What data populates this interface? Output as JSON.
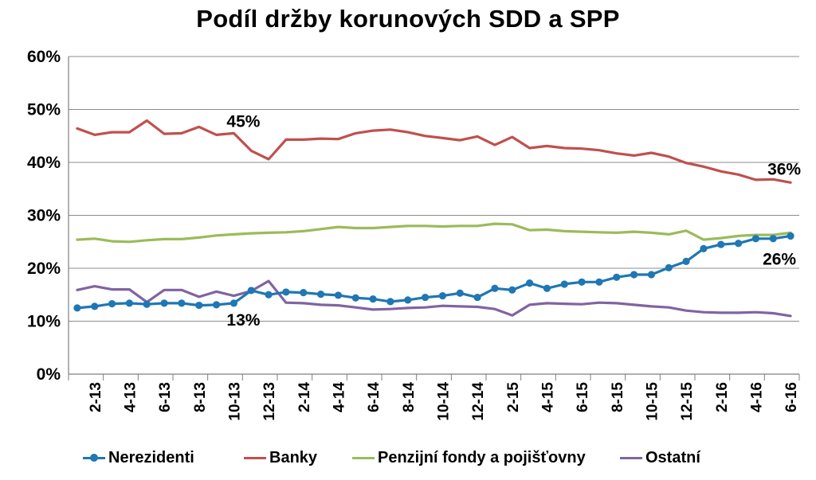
{
  "chart_data": {
    "type": "line",
    "title": "Podíl držby korunových SDD a SPP",
    "ylim": [
      0,
      60
    ],
    "yticks": [
      "0%",
      "10%",
      "20%",
      "30%",
      "40%",
      "50%",
      "60%"
    ],
    "categories": [
      "1-13",
      "2-13",
      "3-13",
      "4-13",
      "5-13",
      "6-13",
      "7-13",
      "8-13",
      "9-13",
      "10-13",
      "11-13",
      "12-13",
      "1-14",
      "2-14",
      "3-14",
      "4-14",
      "5-14",
      "6-14",
      "7-14",
      "8-14",
      "9-14",
      "10-14",
      "11-14",
      "12-14",
      "1-15",
      "2-15",
      "3-15",
      "4-15",
      "5-15",
      "6-15",
      "7-15",
      "8-15",
      "9-15",
      "10-15",
      "11-15",
      "12-15",
      "1-16",
      "2-16",
      "3-16",
      "4-16",
      "5-16",
      "6-16"
    ],
    "xtick_labels": [
      "2-13",
      "4-13",
      "6-13",
      "8-13",
      "10-13",
      "12-13",
      "2-14",
      "4-14",
      "6-14",
      "8-14",
      "10-14",
      "12-14",
      "2-15",
      "4-15",
      "6-15",
      "8-15",
      "10-15",
      "12-15",
      "2-16",
      "4-16",
      "6-16"
    ],
    "grid": "horizontal",
    "legend_position": "bottom",
    "series": [
      {
        "name": "Nerezidenti",
        "color": "#1f77b4",
        "markers": true,
        "values": [
          12.5,
          12.8,
          13.3,
          13.4,
          13.2,
          13.4,
          13.4,
          13.0,
          13.1,
          13.4,
          15.8,
          15.0,
          15.5,
          15.4,
          15.1,
          14.9,
          14.4,
          14.2,
          13.7,
          14.0,
          14.5,
          14.8,
          15.3,
          14.5,
          16.2,
          15.9,
          17.2,
          16.2,
          17.0,
          17.4,
          17.4,
          18.3,
          18.8,
          18.8,
          20.1,
          21.3,
          23.7,
          24.5,
          24.7,
          25.6,
          25.6,
          26.1
        ]
      },
      {
        "name": "Banky",
        "color": "#c0504d",
        "markers": false,
        "values": [
          46.4,
          45.2,
          45.7,
          45.7,
          47.9,
          45.4,
          45.5,
          46.7,
          45.2,
          45.5,
          42.2,
          40.6,
          44.3,
          44.3,
          44.5,
          44.4,
          45.5,
          46.0,
          46.2,
          45.7,
          45.0,
          44.6,
          44.2,
          44.9,
          43.3,
          44.8,
          42.7,
          43.1,
          42.7,
          42.6,
          42.3,
          41.7,
          41.3,
          41.8,
          41.1,
          39.9,
          39.2,
          38.3,
          37.7,
          36.7,
          36.8,
          36.2
        ]
      },
      {
        "name": "Penzijní fondy a pojišťovny",
        "color": "#9bbb59",
        "markers": false,
        "values": [
          25.4,
          25.6,
          25.1,
          25.0,
          25.3,
          25.5,
          25.5,
          25.8,
          26.2,
          26.4,
          26.6,
          26.7,
          26.8,
          27.0,
          27.4,
          27.8,
          27.6,
          27.6,
          27.8,
          28.0,
          28.0,
          27.9,
          28.0,
          28.0,
          28.4,
          28.3,
          27.2,
          27.3,
          27.0,
          26.9,
          26.8,
          26.7,
          26.9,
          26.7,
          26.4,
          27.1,
          25.4,
          25.7,
          26.1,
          26.3,
          26.3,
          26.7
        ]
      },
      {
        "name": "Ostatní",
        "color": "#8064a2",
        "markers": false,
        "values": [
          15.9,
          16.6,
          16.0,
          16.0,
          13.6,
          15.9,
          15.9,
          14.6,
          15.6,
          14.8,
          15.7,
          17.6,
          13.5,
          13.4,
          13.1,
          13.0,
          12.6,
          12.2,
          12.3,
          12.5,
          12.6,
          12.9,
          12.8,
          12.7,
          12.3,
          11.1,
          13.1,
          13.4,
          13.3,
          13.2,
          13.5,
          13.4,
          13.1,
          12.8,
          12.6,
          12.0,
          11.7,
          11.6,
          11.6,
          11.7,
          11.5,
          11.0
        ]
      }
    ],
    "annotations": [
      {
        "text": "45%",
        "x": "10-13",
        "y": 45.5
      },
      {
        "text": "13%",
        "x": "10-13",
        "y": 13.4
      },
      {
        "text": "36%",
        "x": "6-16",
        "y": 36.2
      },
      {
        "text": "26%",
        "x": "6-16",
        "y": 26.1
      }
    ]
  }
}
